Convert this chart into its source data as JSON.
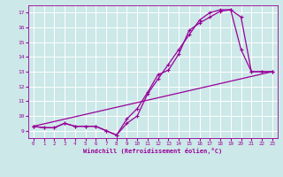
{
  "xlabel": "Windchill (Refroidissement éolien,°C)",
  "background_color": "#cce8e8",
  "grid_color": "#ffffff",
  "line_color": "#990099",
  "xlim": [
    -0.5,
    23.5
  ],
  "ylim": [
    8.5,
    17.5
  ],
  "xticks": [
    0,
    1,
    2,
    3,
    4,
    5,
    6,
    7,
    8,
    9,
    10,
    11,
    12,
    13,
    14,
    15,
    16,
    17,
    18,
    19,
    20,
    21,
    22,
    23
  ],
  "yticks": [
    9,
    10,
    11,
    12,
    13,
    14,
    15,
    16,
    17
  ],
  "line1_x": [
    0,
    1,
    2,
    3,
    4,
    5,
    6,
    7,
    8,
    9,
    10,
    11,
    12,
    13,
    14,
    15,
    16,
    17,
    18,
    19,
    20,
    21,
    22,
    23
  ],
  "line1_y": [
    9.3,
    9.2,
    9.2,
    9.5,
    9.3,
    9.3,
    9.3,
    9.0,
    8.7,
    9.8,
    10.5,
    11.6,
    12.8,
    13.1,
    14.2,
    15.8,
    16.3,
    16.7,
    17.1,
    17.2,
    16.7,
    13.0,
    13.0,
    13.0
  ],
  "line2_x": [
    0,
    1,
    2,
    3,
    4,
    5,
    6,
    7,
    8,
    9,
    10,
    11,
    12,
    13,
    14,
    15,
    16,
    17,
    18,
    19,
    20,
    21,
    22,
    23
  ],
  "line2_y": [
    9.3,
    9.2,
    9.2,
    9.5,
    9.3,
    9.3,
    9.3,
    9.0,
    8.7,
    9.5,
    10.0,
    11.5,
    12.5,
    13.5,
    14.5,
    15.5,
    16.5,
    17.0,
    17.2,
    17.2,
    14.5,
    13.0,
    13.0,
    13.0
  ],
  "line3_x": [
    0,
    23
  ],
  "line3_y": [
    9.3,
    13.0
  ],
  "figsize": [
    3.2,
    2.0
  ],
  "dpi": 100
}
